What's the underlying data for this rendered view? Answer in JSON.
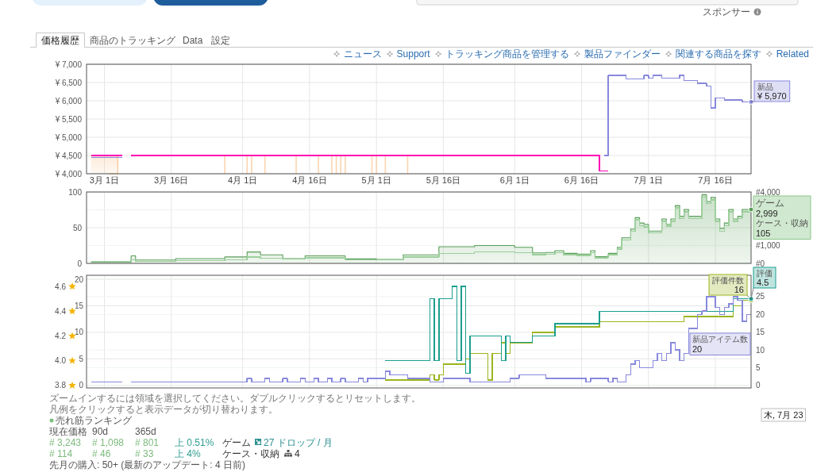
{
  "chart_data": [
    {
      "type": "step",
      "xlim": [
        "--02-25",
        "--07-24"
      ],
      "xticks": [
        {
          "value": "--03-01",
          "label": "3月 1日"
        },
        {
          "value": "--03-16",
          "label": "3月 16日"
        },
        {
          "value": "--04-01",
          "label": "4月 1日"
        },
        {
          "value": "--04-16",
          "label": "4月 16日"
        },
        {
          "value": "--05-01",
          "label": "5月 1日"
        },
        {
          "value": "--05-16",
          "label": "5月 16日"
        },
        {
          "value": "--06-01",
          "label": "6月 1日"
        },
        {
          "value": "--06-16",
          "label": "6月 16日"
        },
        {
          "value": "--07-01",
          "label": "7月 1日"
        },
        {
          "value": "--07-16",
          "label": "7月 16日"
        }
      ],
      "ylim": [
        4000,
        7000
      ],
      "yticks": [
        {
          "value": 4000,
          "label": "¥ 4,000"
        },
        {
          "value": 4500,
          "label": "¥ 4,500"
        },
        {
          "value": 5000,
          "label": "¥ 5,000"
        },
        {
          "value": 5500,
          "label": "¥ 5,500"
        },
        {
          "value": 6000,
          "label": "¥ 6,000"
        },
        {
          "value": 6500,
          "label": "¥ 6,500"
        },
        {
          "value": 7000,
          "label": "¥ 7,000"
        }
      ],
      "grid": true,
      "series": [
        {
          "type": "area",
          "color": "#f8c08a",
          "x": [
            "--02-26",
            "--03-04"
          ],
          "values": [
            4500,
            4500
          ]
        },
        {
          "type": "bar",
          "color": "#fbd5b0",
          "x": [
            "--03-28",
            "--04-02",
            "--04-03",
            "--04-06",
            "--04-13",
            "--04-18",
            "--04-21",
            "--04-22",
            "--04-23",
            "--04-24",
            "--04-30",
            "--05-01",
            "--05-03",
            "--05-08"
          ],
          "values": [
            4500,
            4500,
            4500,
            4500,
            4500,
            4500,
            4500,
            4500,
            4500,
            4500,
            4500,
            4500,
            4500,
            4500
          ]
        },
        {
          "color": "#ff00b4",
          "x": [
            "--02-26",
            "--03-03",
            "--03-05",
            "--03-07",
            "--06-20",
            "--06-22"
          ],
          "values": [
            4500,
            4500,
            null,
            4500,
            4080,
            4080
          ]
        },
        {
          "name": "新品",
          "color": "#8888dd",
          "x": [
            "--02-26",
            "--03-03",
            "--03-05",
            "--06-21",
            "--06-22",
            "--06-26",
            "--06-30",
            "--07-01",
            "--07-02",
            "--07-04",
            "--07-08",
            "--07-09",
            "--07-12",
            "--07-14",
            "--07-15",
            "--07-16",
            "--07-18",
            "--07-22",
            "--07-24"
          ],
          "values": [
            4450,
            4450,
            null,
            4500,
            6700,
            6600,
            6700,
            6620,
            6700,
            6620,
            6700,
            6550,
            6480,
            6400,
            5800,
            6080,
            6020,
            5970,
            5970
          ],
          "value_labels": [
            null,
            null,
            null,
            null,
            null,
            null,
            null,
            null,
            null,
            null,
            null,
            null,
            null,
            null,
            null,
            null,
            null,
            null,
            "¥ 5,970"
          ]
        }
      ],
      "annotations": [
        "スポンサー",
        "価格履歴",
        "商品のトラッキング",
        "Data",
        "設定",
        "ニュース",
        "Support",
        "トラッキング商品を管理する",
        "製品ファインダー",
        "関連する商品を探す",
        "Related"
      ]
    },
    {
      "type": "step",
      "xlim": [
        "--02-25",
        "--07-24"
      ],
      "xticks": [
        "--03-01",
        "--03-16",
        "--04-01",
        "--04-16",
        "--05-01",
        "--05-16",
        "--06-01",
        "--06-16",
        "--07-01",
        "--07-16"
      ],
      "tick_labels": "y",
      "ylim": [
        0,
        100
      ],
      "yticks": [
        0,
        50,
        100
      ],
      "y2lim": [
        0,
        4000
      ],
      "y2ticks": [
        {
          "value": 0,
          "label": "#0"
        },
        {
          "value": 1000,
          "label": "#1,000"
        },
        {
          "value": 2000,
          "label": null
        },
        {
          "value": 3000,
          "label": null
        },
        {
          "value": 4000,
          "label": "#4,000"
        }
      ],
      "grid": true,
      "series": [
        {
          "type": "area",
          "axis": "y2",
          "color": "#5a9e5a",
          "x": [
            "--02-26",
            "--03-07",
            "--03-08",
            "--03-17",
            "--03-28",
            "--04-02",
            "--04-05",
            "--04-10",
            "--04-15",
            "--04-24",
            "--05-01",
            "--05-07",
            "--05-15",
            "--05-23",
            "--06-01",
            "--06-05",
            "--06-08",
            "--06-10",
            "--06-12",
            "--06-15",
            "--06-18",
            "--06-19",
            "--06-22",
            "--06-24",
            "--06-25",
            "--06-27",
            "--06-28",
            "--06-29",
            "--06-30",
            "--07-01",
            "--07-04",
            "--07-05",
            "--07-06",
            "--07-07",
            "--07-08",
            "--07-09",
            "--07-10",
            "--07-13",
            "--07-14",
            "--07-15",
            "--07-16",
            "--07-17",
            "--07-18",
            "--07-19",
            "--07-20",
            "--07-21",
            "--07-22",
            "--07-24"
          ],
          "values": [
            80,
            420,
            190,
            270,
            360,
            640,
            480,
            270,
            420,
            250,
            220,
            480,
            930,
            1000,
            900,
            590,
            610,
            710,
            560,
            520,
            710,
            380,
            560,
            900,
            1430,
            1920,
            2560,
            2260,
            2190,
            1810,
            2490,
            2190,
            2490,
            3240,
            2640,
            3020,
            2640,
            3850,
            3470,
            3700,
            2490,
            1960,
            2260,
            3020,
            2490,
            2640,
            3020,
            3020
          ]
        },
        {
          "color": "#9ccf9c",
          "x": [
            "--02-26",
            "--03-07",
            "--03-08",
            "--03-17",
            "--03-28",
            "--04-02",
            "--04-05",
            "--04-10",
            "--04-15",
            "--04-24",
            "--05-01",
            "--05-07",
            "--05-15",
            "--05-23",
            "--06-01",
            "--06-05",
            "--06-08",
            "--06-10",
            "--06-12",
            "--06-15",
            "--06-18",
            "--06-19",
            "--06-22",
            "--06-24",
            "--06-25",
            "--06-27",
            "--06-28",
            "--06-29",
            "--06-30",
            "--07-01",
            "--07-04",
            "--07-05",
            "--07-06",
            "--07-07",
            "--07-08",
            "--07-09",
            "--07-10",
            "--07-13",
            "--07-14",
            "--07-15",
            "--07-16",
            "--07-17",
            "--07-18",
            "--07-19",
            "--07-20",
            "--07-21",
            "--07-22",
            "--07-24"
          ],
          "values": [
            3,
            5,
            3,
            4,
            5,
            9,
            7,
            6,
            8,
            5,
            5,
            9,
            14,
            16,
            15,
            12,
            13,
            15,
            12,
            11,
            15,
            8,
            12,
            20,
            33,
            45,
            61,
            53,
            51,
            43,
            59,
            52,
            59,
            78,
            63,
            72,
            63,
            93,
            84,
            89,
            59,
            45,
            53,
            72,
            59,
            63,
            72,
            72
          ]
        }
      ],
      "annotations": [
        "ゲーム\n2,999\nケース・収納\n105"
      ]
    },
    {
      "type": "step",
      "xlim": [
        "--02-25",
        "--07-24"
      ],
      "xticks": [
        "--03-01",
        "--03-16",
        "--04-01",
        "--04-16",
        "--05-01",
        "--05-16",
        "--06-01",
        "--06-16",
        "--07-01",
        "--07-16"
      ],
      "tick_labels": "y",
      "ylim": [
        -0.5,
        20.75
      ],
      "yticks": [
        0,
        5,
        10,
        15,
        20
      ],
      "y2lim": [
        -0.7,
        31
      ],
      "y2ticks": [
        0,
        5,
        10,
        15,
        20,
        25,
        {
          "value": 30,
          "label": null
        }
      ],
      "y3lim": [
        3.78,
        4.69
      ],
      "y3ticks": [
        3.8,
        {
          "value": 4,
          "label": "4.0"
        },
        4.2,
        4.4,
        4.6
      ],
      "grid": true,
      "series": [
        {
          "name": "評価件数",
          "color": "#9ab51e",
          "x": [
            "--05-03",
            "--05-13",
            "--05-14",
            "--05-15",
            "--05-16",
            "--05-21",
            "--05-22",
            "--05-26",
            "--05-27",
            "--05-29",
            "--05-30",
            "--05-31",
            "--06-05",
            "--06-10",
            "--06-20",
            "--07-09",
            "--07-20",
            "--07-22",
            "--07-24"
          ],
          "values": [
            1,
            2,
            1,
            2,
            4,
            5,
            6,
            1,
            6,
            8,
            6,
            8,
            10,
            11,
            12,
            13,
            15,
            16,
            16
          ],
          "value_labels": [
            null,
            null,
            null,
            null,
            null,
            null,
            null,
            null,
            null,
            null,
            null,
            null,
            null,
            null,
            null,
            null,
            null,
            null,
            "16"
          ]
        },
        {
          "name": "評価",
          "axis": "y3",
          "color": "#1b9e8e",
          "x": [
            "--05-03",
            "--05-13",
            "--05-14",
            "--05-15",
            "--05-18",
            "--05-19",
            "--05-20",
            "--05-21",
            "--05-22",
            "--05-29",
            "--05-30",
            "--05-31",
            "--06-05",
            "--06-10",
            "--06-20",
            "--07-20",
            "--07-24"
          ],
          "values": [
            4.0,
            4.5,
            4.0,
            4.5,
            4.6,
            4.0,
            4.6,
            3.9,
            4.2,
            4.0,
            4.2,
            4.15,
            4.2,
            4.3,
            4.4,
            4.5,
            4.5
          ],
          "value_labels": [
            null,
            null,
            null,
            null,
            null,
            null,
            null,
            null,
            null,
            null,
            null,
            null,
            null,
            null,
            null,
            null,
            "4.5"
          ]
        },
        {
          "axis": "y2",
          "color": "#8888dd",
          "x": [
            "--02-26",
            "--03-04",
            "--03-05",
            "--03-07",
            "--04-02",
            "--04-03",
            "--04-06",
            "--04-07",
            "--04-10",
            "--04-11",
            "--04-14",
            "--04-15",
            "--04-17",
            "--04-18",
            "--04-20",
            "--04-21",
            "--04-23",
            "--04-24",
            "--04-27",
            "--04-28",
            "--04-29",
            "--05-03",
            "--05-04",
            "--05-08",
            "--05-13",
            "--05-16",
            "--05-22",
            "--05-31",
            "--06-02",
            "--06-08",
            "--06-17",
            "--06-18",
            "--06-22",
            "--06-23",
            "--06-24",
            "--06-26",
            "--06-27",
            "--06-28",
            "--06-29",
            "--07-02",
            "--07-03",
            "--07-04",
            "--07-05",
            "--07-06",
            "--07-07",
            "--07-08",
            "--07-09",
            "--07-10",
            "--07-12",
            "--07-13",
            "--07-14",
            "--07-16",
            "--07-17",
            "--07-18",
            "--07-19",
            "--07-20",
            "--07-21",
            "--07-22",
            "--07-23",
            "--07-24"
          ],
          "values": [
            1,
            1,
            null,
            1,
            2,
            1,
            2,
            1,
            2,
            1,
            2,
            1,
            2,
            1,
            2,
            1,
            2,
            1,
            2,
            1,
            2,
            4,
            3,
            2,
            1,
            2,
            1,
            2,
            3,
            2,
            1,
            2,
            1,
            2,
            1,
            3,
            6,
            7,
            5,
            7,
            9,
            7,
            9,
            12,
            10,
            7,
            9,
            16,
            20,
            21,
            25,
            22,
            20,
            22,
            23,
            25,
            24,
            18,
            20,
            20
          ]
        }
      ],
      "annotations": [
        "ズームインするには領域を選択してください。ダブルクリックするとリセットします。",
        "凡例をクリックすると表示データが切り替わります。",
        "売れ筋ランキング",
        "現在価格",
        "90d",
        "365d",
        "# 3,243",
        "# 1,098",
        "# 801",
        "上 0.51%",
        "ゲーム",
        "27 ドロップ / 月",
        "# 114",
        "# 46",
        "# 33",
        "上 4%",
        "ケース・収納",
        "4",
        "先月の購入: 50+ (最新のアップデート: 4 日前)",
        "木, 7月 23",
        "新品アイテム数\n20"
      ]
    }
  ]
}
